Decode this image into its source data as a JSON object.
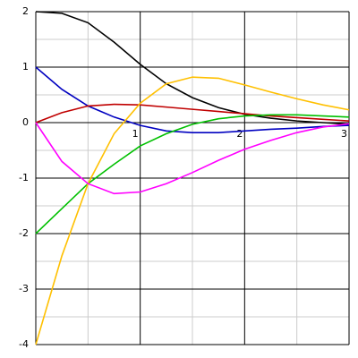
{
  "chart_data": {
    "type": "line",
    "x": [
      0,
      0.25,
      0.5,
      0.75,
      1,
      1.25,
      1.5,
      1.75,
      2,
      2.25,
      2.5,
      2.75,
      3
    ],
    "series": [
      {
        "color": "#000000",
        "values": [
          2,
          1.97,
          1.8,
          1.45,
          1.05,
          0.7,
          0.45,
          0.27,
          0.15,
          0.08,
          0.03,
          0,
          -0.03
        ]
      },
      {
        "color": "#0000c0",
        "values": [
          1,
          0.6,
          0.3,
          0.1,
          -0.05,
          -0.15,
          -0.18,
          -0.18,
          -0.15,
          -0.12,
          -0.1,
          -0.07,
          -0.05
        ]
      },
      {
        "color": "#c00000",
        "values": [
          0,
          0.18,
          0.3,
          0.33,
          0.32,
          0.28,
          0.24,
          0.2,
          0.16,
          0.12,
          0.09,
          0.06,
          0.03
        ]
      },
      {
        "color": "#00c000",
        "values": [
          -2,
          -1.55,
          -1.1,
          -0.75,
          -0.42,
          -0.2,
          -0.03,
          0.07,
          0.12,
          0.14,
          0.14,
          0.12,
          0.1
        ]
      },
      {
        "color": "#ffc000",
        "values": [
          -4,
          -2.4,
          -1.1,
          -0.2,
          0.35,
          0.7,
          0.82,
          0.8,
          0.68,
          0.55,
          0.43,
          0.32,
          0.23
        ]
      },
      {
        "color": "#ff00ff",
        "values": [
          0,
          -0.7,
          -1.1,
          -1.28,
          -1.25,
          -1.1,
          -0.9,
          -0.68,
          -0.48,
          -0.32,
          -0.18,
          -0.08,
          -0.02
        ]
      }
    ],
    "xlim": [
      0,
      3
    ],
    "ylim": [
      -4,
      2
    ],
    "xticks": [
      1,
      2,
      3
    ],
    "yticks": [
      -4,
      -3,
      -2,
      -1,
      0,
      1,
      2
    ],
    "xminor": [
      0.5,
      1.5,
      2.5
    ],
    "yminor": [
      -3.5,
      -2.5,
      -1.5,
      -0.5,
      0.5,
      1.5
    ],
    "grid": true
  }
}
